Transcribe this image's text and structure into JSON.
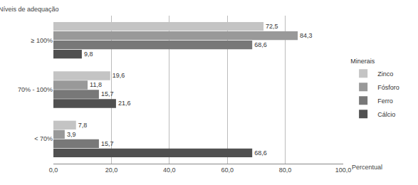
{
  "chart_data": {
    "type": "bar",
    "orientation": "horizontal",
    "ylabel": "Níveis de adequação",
    "xlabel": "Percentual",
    "legend_title": "Minerais",
    "legend": "right",
    "grid": true,
    "data_labels": true,
    "categories": [
      "≥ 100%",
      "70% - 100%",
      "< 70%"
    ],
    "series": [
      {
        "name": "Zinco",
        "color": "#c4c4c4",
        "values": [
          72.5,
          19.6,
          7.8
        ],
        "value_labels": [
          "72,5",
          "19,6",
          "7,8"
        ]
      },
      {
        "name": "Fósforo",
        "color": "#999999",
        "values": [
          84.3,
          11.8,
          3.9
        ],
        "value_labels": [
          "84,3",
          "11,8",
          "3,9"
        ]
      },
      {
        "name": "Ferro",
        "color": "#787878",
        "values": [
          68.6,
          15.7,
          15.7
        ],
        "value_labels": [
          "68,6",
          "15,7",
          "15,7"
        ]
      },
      {
        "name": "Cálcio",
        "color": "#505050",
        "values": [
          9.8,
          21.6,
          68.6
        ],
        "value_labels": [
          "9,8",
          "21,6",
          "68,6"
        ]
      }
    ],
    "xlim": [
      0,
      100
    ],
    "xticks": [
      {
        "value": 0,
        "label": "0,0"
      },
      {
        "value": 20,
        "label": "20,0"
      },
      {
        "value": 40,
        "label": "40,0"
      },
      {
        "value": 60,
        "label": "60,0"
      },
      {
        "value": 80,
        "label": "80,0"
      },
      {
        "value": 100,
        "label": "100,0"
      }
    ]
  }
}
